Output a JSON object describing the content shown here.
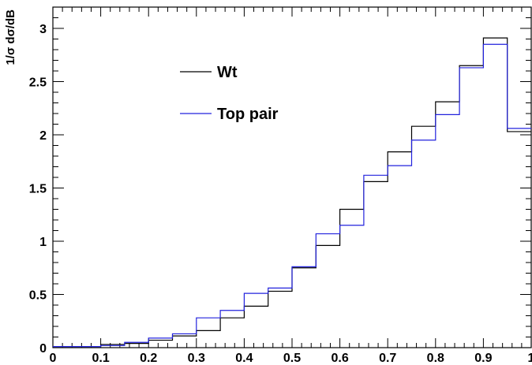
{
  "chart_data": {
    "type": "line",
    "step": true,
    "ylabel": "1/σ dσ/dB",
    "xlim": [
      0,
      1
    ],
    "ylim": [
      0,
      3.2
    ],
    "x_ticks": [
      "0",
      "0.1",
      "0.2",
      "0.3",
      "0.4",
      "0.5",
      "0.6",
      "0.7",
      "0.8",
      "0.9",
      "1"
    ],
    "x_tick_values": [
      0,
      0.1,
      0.2,
      0.3,
      0.4,
      0.5,
      0.6,
      0.7,
      0.8,
      0.9,
      1.0
    ],
    "y_ticks": [
      "0",
      "0.5",
      "1",
      "1.5",
      "2",
      "2.5",
      "3"
    ],
    "y_tick_values": [
      0,
      0.5,
      1,
      1.5,
      2,
      2.5,
      3
    ],
    "bin_edges": [
      0,
      0.05,
      0.1,
      0.15,
      0.2,
      0.25,
      0.3,
      0.35,
      0.4,
      0.45,
      0.5,
      0.55,
      0.6,
      0.65,
      0.7,
      0.75,
      0.8,
      0.85,
      0.9,
      0.95,
      1.0
    ],
    "grid": false,
    "legend_position": "top-left",
    "series": [
      {
        "name": "Wt",
        "color": "#000000",
        "values": [
          0.01,
          0.01,
          0.03,
          0.04,
          0.07,
          0.11,
          0.16,
          0.28,
          0.39,
          0.53,
          0.75,
          0.96,
          1.3,
          1.56,
          1.84,
          2.08,
          2.31,
          2.65,
          2.91,
          2.03
        ]
      },
      {
        "name": "Top pair",
        "color": "#2222dd",
        "values": [
          0.01,
          0.01,
          0.02,
          0.05,
          0.09,
          0.13,
          0.28,
          0.35,
          0.51,
          0.56,
          0.76,
          1.07,
          1.15,
          1.62,
          1.71,
          1.95,
          2.19,
          2.63,
          2.85,
          2.06
        ]
      }
    ]
  }
}
